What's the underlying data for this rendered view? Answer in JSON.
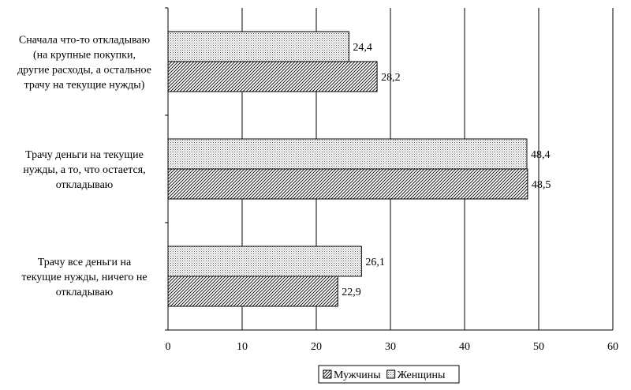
{
  "chart_data": {
    "type": "bar",
    "orientation": "horizontal",
    "categories": [
      [
        "Сначала что-то откладываю",
        "(на крупные покупки,",
        "другие расходы, а остальное",
        "трачу на текущие нужды)"
      ],
      [
        "Трачу деньги на текущие",
        "нужды, а то, что остается,",
        "откладываю"
      ],
      [
        "Трачу все деньги на",
        "текущие нужды, ничего не",
        "откладываю"
      ]
    ],
    "series": [
      {
        "name": "Женщины",
        "values": [
          24.4,
          48.4,
          26.1
        ],
        "labels": [
          "24,4",
          "48,4",
          "26,1"
        ],
        "pattern": "dots"
      },
      {
        "name": "Мужчины",
        "values": [
          28.2,
          48.5,
          22.9
        ],
        "labels": [
          "28,2",
          "48,5",
          "22,9"
        ],
        "pattern": "hatch"
      }
    ],
    "xlim": [
      0,
      60
    ],
    "xticks": [
      0,
      10,
      20,
      30,
      40,
      50,
      60
    ],
    "xtick_labels": [
      "0",
      "10",
      "20",
      "30",
      "40",
      "50",
      "60"
    ],
    "title": "",
    "xlabel": "",
    "ylabel": "",
    "grid": true,
    "legend": {
      "position": "bottom",
      "items": [
        {
          "name": "Мужчины",
          "pattern": "hatch"
        },
        {
          "name": "Женщины",
          "pattern": "dots"
        }
      ]
    },
    "colors": {
      "bar_fill": "#ffffff",
      "bar_stroke": "#000000",
      "pattern": "#000000",
      "grid": "#000000"
    }
  }
}
